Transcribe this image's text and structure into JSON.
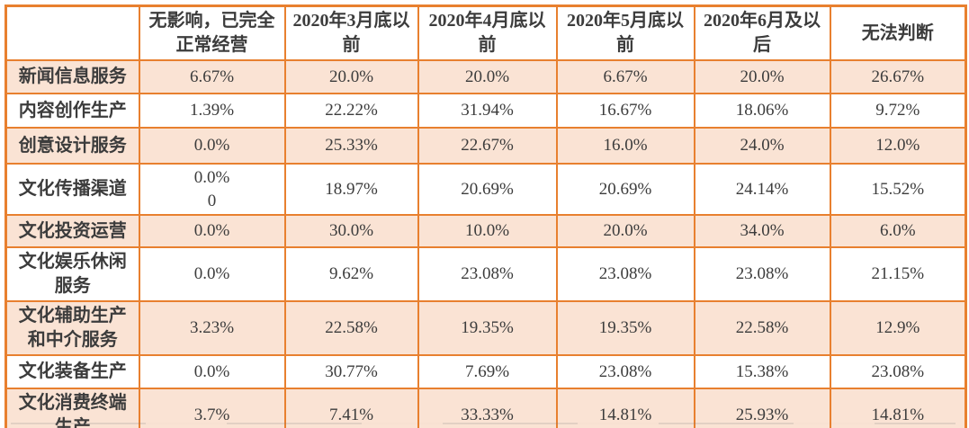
{
  "colors": {
    "border": "#E8802F",
    "row_shade": "#FAE3D4",
    "header_background": "#FFFFFF",
    "text": "#3C3C3C"
  },
  "table": {
    "corner_label": "",
    "headers": [
      "无影响，已完全正常经营",
      "2020年3月底以前",
      "2020年4月底以前",
      "2020年5月底以前",
      "2020年6月及以后",
      "无法判断"
    ],
    "rows": [
      {
        "label": "新闻信息服务",
        "shaded": true,
        "values": [
          "6.67%",
          "20.0%",
          "20.0%",
          "6.67%",
          "20.0%",
          "26.67%"
        ]
      },
      {
        "label": "内容创作生产",
        "shaded": false,
        "values": [
          "1.39%",
          "22.22%",
          "31.94%",
          "16.67%",
          "18.06%",
          "9.72%"
        ]
      },
      {
        "label": "创意设计服务",
        "shaded": true,
        "values": [
          "0.0%",
          "25.33%",
          "22.67%",
          "16.0%",
          "24.0%",
          "12.0%"
        ]
      },
      {
        "label": "文化传播渠道",
        "shaded": false,
        "values": [
          "0.0%\n0",
          "18.97%",
          "20.69%",
          "20.69%",
          "24.14%",
          "15.52%"
        ]
      },
      {
        "label": "文化投资运营",
        "shaded": true,
        "values": [
          "0.0%",
          "30.0%",
          "10.0%",
          "20.0%",
          "34.0%",
          "6.0%"
        ]
      },
      {
        "label": "文化娱乐休闲服务",
        "shaded": false,
        "values": [
          "0.0%",
          "9.62%",
          "23.08%",
          "23.08%",
          "23.08%",
          "21.15%"
        ]
      },
      {
        "label": "文化辅助生产和中介服务",
        "shaded": true,
        "values": [
          "3.23%",
          "22.58%",
          "19.35%",
          "19.35%",
          "22.58%",
          "12.9%"
        ]
      },
      {
        "label": "文化装备生产",
        "shaded": false,
        "values": [
          "0.0%",
          "30.77%",
          "7.69%",
          "23.08%",
          "15.38%",
          "23.08%"
        ]
      },
      {
        "label": "文化消费终端生产",
        "shaded": true,
        "values": [
          "3.7%",
          "7.41%",
          "33.33%",
          "14.81%",
          "25.93%",
          "14.81%"
        ]
      }
    ]
  },
  "chart_data": {
    "type": "table",
    "title": "",
    "columns": [
      "",
      "无影响，已完全正常经营",
      "2020年3月底以前",
      "2020年4月底以前",
      "2020年5月底以前",
      "2020年6月及以后",
      "无法判断"
    ],
    "rows": [
      [
        "新闻信息服务",
        "6.67%",
        "20.0%",
        "20.0%",
        "6.67%",
        "20.0%",
        "26.67%"
      ],
      [
        "内容创作生产",
        "1.39%",
        "22.22%",
        "31.94%",
        "16.67%",
        "18.06%",
        "9.72%"
      ],
      [
        "创意设计服务",
        "0.0%",
        "25.33%",
        "22.67%",
        "16.0%",
        "24.0%",
        "12.0%"
      ],
      [
        "文化传播渠道",
        "0.0% 0",
        "18.97%",
        "20.69%",
        "20.69%",
        "24.14%",
        "15.52%"
      ],
      [
        "文化投资运营",
        "0.0%",
        "30.0%",
        "10.0%",
        "20.0%",
        "34.0%",
        "6.0%"
      ],
      [
        "文化娱乐休闲服务",
        "0.0%",
        "9.62%",
        "23.08%",
        "23.08%",
        "23.08%",
        "21.15%"
      ],
      [
        "文化辅助生产和中介服务",
        "3.23%",
        "22.58%",
        "19.35%",
        "19.35%",
        "22.58%",
        "12.9%"
      ],
      [
        "文化装备生产",
        "0.0%",
        "30.77%",
        "7.69%",
        "23.08%",
        "15.38%",
        "23.08%"
      ],
      [
        "文化消费终端生产",
        "3.7%",
        "7.41%",
        "33.33%",
        "14.81%",
        "25.93%",
        "14.81%"
      ]
    ]
  }
}
